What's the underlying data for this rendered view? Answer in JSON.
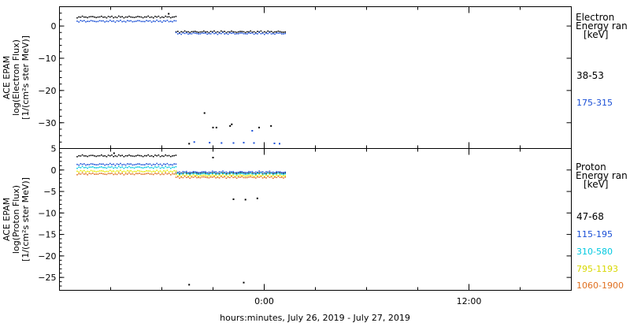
{
  "xlabel": "hours:minutes, July 26, 2019 - July 27, 2019",
  "xticks": [
    {
      "t": 0,
      "label": "0:00"
    },
    {
      "t": 12,
      "label": "12:00"
    }
  ],
  "xlim": [
    -12,
    18
  ],
  "colors": {
    "black": "#000000",
    "blue": "#1a4fd6",
    "cyan": "#00c8e0",
    "yellow": "#e8e800",
    "orange": "#e07020"
  },
  "chart_data": [
    {
      "type": "scatter",
      "ylabel_lines": [
        "ACE EPAM",
        "log(Electron Flux)",
        "[1/(cm²s ster MeV)]"
      ],
      "ylim": [
        -38,
        6
      ],
      "yticks": [
        0,
        -10,
        -20,
        -30
      ],
      "legend": {
        "title_lines": [
          "Electron",
          "Energy ran",
          "[keV]"
        ],
        "placement": "right"
      },
      "series": [
        {
          "name": "38-53",
          "color": "#000000",
          "segments": [
            {
              "t0": -11.0,
              "t1": -5.2,
              "y": 2.8
            },
            {
              "t0": -5.2,
              "t1": 1.2,
              "y": -1.8
            }
          ],
          "points": [
            {
              "t": -5.6,
              "y": 3.8
            },
            {
              "t": -4.4,
              "y": -36.5
            },
            {
              "t": -3.5,
              "y": -27.0
            },
            {
              "t": -3.0,
              "y": -31.5
            },
            {
              "t": -2.8,
              "y": -31.5
            },
            {
              "t": -2.0,
              "y": -31.0
            },
            {
              "t": -1.9,
              "y": -30.5
            },
            {
              "t": -0.3,
              "y": -31.5
            },
            {
              "t": 0.4,
              "y": -31.0
            }
          ]
        },
        {
          "name": "175-315",
          "color": "#1a4fd6",
          "segments": [
            {
              "t0": -11.0,
              "t1": -5.2,
              "y": 1.5
            },
            {
              "t0": -5.2,
              "t1": 1.2,
              "y": -2.3
            }
          ],
          "points": [
            {
              "t": -4.1,
              "y": -36.0
            },
            {
              "t": -3.2,
              "y": -36.2
            },
            {
              "t": -2.5,
              "y": -36.3
            },
            {
              "t": -1.8,
              "y": -36.3
            },
            {
              "t": -1.2,
              "y": -36.2
            },
            {
              "t": -0.7,
              "y": -32.5
            },
            {
              "t": -0.6,
              "y": -36.3
            },
            {
              "t": 0.6,
              "y": -36.4
            },
            {
              "t": 0.9,
              "y": -36.5
            }
          ]
        }
      ]
    },
    {
      "type": "scatter",
      "ylabel_lines": [
        "ACE EPAM",
        "log(Proton Flux)",
        "[1/(cm²s ster MeV)]"
      ],
      "ylim": [
        -28,
        5
      ],
      "yticks": [
        5,
        0,
        -5,
        -10,
        -15,
        -20,
        -25
      ],
      "legend": {
        "title_lines": [
          "Proton",
          "Energy ran",
          "[keV]"
        ],
        "placement": "right"
      },
      "series": [
        {
          "name": "47-68",
          "color": "#000000",
          "segments": [
            {
              "t0": -11.0,
              "t1": -5.2,
              "y": 3.3
            },
            {
              "t0": -5.2,
              "t1": 1.2,
              "y": -0.7
            }
          ],
          "points": [
            {
              "t": -8.8,
              "y": 3.9
            },
            {
              "t": -3.0,
              "y": 2.9
            },
            {
              "t": -4.4,
              "y": -26.7
            },
            {
              "t": -1.2,
              "y": -26.2
            },
            {
              "t": -1.8,
              "y": -6.8
            },
            {
              "t": -1.1,
              "y": -6.9
            },
            {
              "t": -0.4,
              "y": -6.6
            }
          ]
        },
        {
          "name": "115-195",
          "color": "#1a4fd6",
          "segments": [
            {
              "t0": -11.0,
              "t1": -5.2,
              "y": 1.3
            },
            {
              "t0": -5.2,
              "t1": 1.2,
              "y": -0.5
            }
          ],
          "points": []
        },
        {
          "name": "310-580",
          "color": "#00c8e0",
          "segments": [
            {
              "t0": -11.0,
              "t1": -5.2,
              "y": 0.6
            },
            {
              "t0": -5.2,
              "t1": 1.2,
              "y": -0.9
            }
          ],
          "points": []
        },
        {
          "name": "795-1193",
          "color": "#e8e800",
          "segments": [
            {
              "t0": -11.0,
              "t1": -5.2,
              "y": -0.3
            },
            {
              "t0": -5.2,
              "t1": 1.2,
              "y": -1.3
            }
          ],
          "points": []
        },
        {
          "name": "1060-1900",
          "color": "#e07020",
          "segments": [
            {
              "t0": -11.0,
              "t1": -5.2,
              "y": -0.9
            },
            {
              "t0": -5.2,
              "t1": 1.2,
              "y": -1.7
            }
          ],
          "points": []
        }
      ]
    }
  ]
}
